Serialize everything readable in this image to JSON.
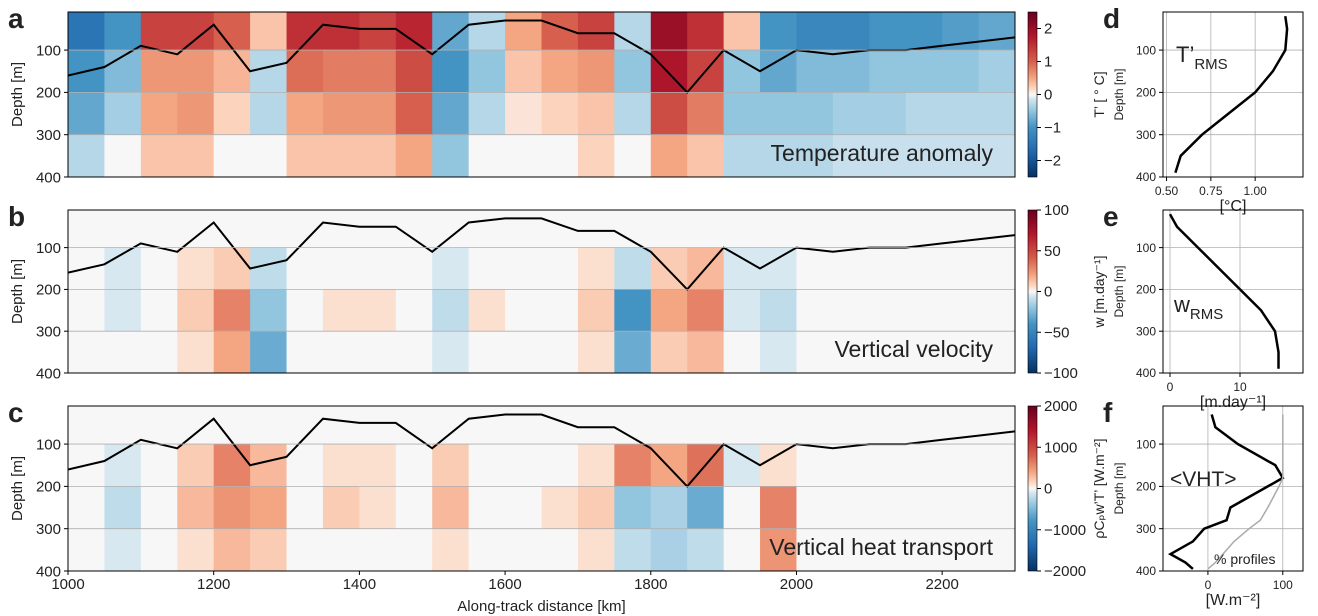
{
  "chart_data": [
    {
      "type": "heatmap",
      "label": "a",
      "annotation": "Temperature anomaly",
      "ylabel": "Depth [m]",
      "colorbar_label": "T’ [ ° C]",
      "xlim": [
        1000,
        2300
      ],
      "ylim": [
        400,
        10
      ],
      "yticks": [
        100,
        200,
        300,
        400
      ],
      "grid": true,
      "zlim": [
        -2.5,
        2.5
      ],
      "zticks": [
        {
          "value": -2,
          "label": "−2"
        },
        {
          "value": -1,
          "label": "−1"
        },
        0,
        1,
        2
      ],
      "x_bins": [
        1000,
        1050,
        1100,
        1150,
        1200,
        1250,
        1300,
        1350,
        1400,
        1450,
        1500,
        1550,
        1600,
        1650,
        1700,
        1750,
        1800,
        1850,
        1900,
        1950,
        2000,
        2050,
        2100,
        2150,
        2200,
        2250,
        2300
      ],
      "y_bins": [
        0,
        100,
        200,
        300,
        400
      ],
      "values": [
        [
          -1.5,
          -1,
          1.3,
          1.3,
          1,
          0.3,
          1.5,
          1.5,
          1.3,
          1.6,
          -0.8,
          -0.3,
          0.5,
          1,
          1.3,
          -0.3,
          2,
          1.5,
          0.3,
          -1,
          -1.2,
          -1.2,
          -1,
          -1,
          -0.9,
          -0.8
        ],
        [
          -1,
          -0.6,
          0.6,
          0.6,
          0.4,
          -0.3,
          0.9,
          0.8,
          0.8,
          1.2,
          -1,
          -0.5,
          0.3,
          0.5,
          0.6,
          -0.5,
          1.8,
          1.3,
          -0.5,
          -0.8,
          -0.6,
          -0.6,
          -0.5,
          -0.5,
          -0.5,
          -0.4
        ],
        [
          -0.8,
          -0.4,
          0.5,
          0.6,
          0.2,
          -0.3,
          0.5,
          0.6,
          0.6,
          1,
          -0.8,
          -0.3,
          0.1,
          0.2,
          0.3,
          -0.3,
          1.2,
          0.8,
          -0.5,
          -0.5,
          -0.5,
          -0.4,
          -0.4,
          -0.3,
          -0.3,
          -0.3
        ],
        [
          -0.3,
          0,
          0.3,
          0.3,
          0,
          0,
          0.3,
          0.3,
          0.3,
          0.5,
          -0.5,
          0,
          0,
          0,
          0.2,
          0,
          0.5,
          0.3,
          -0.3,
          -0.3,
          -0.3,
          -0.2,
          -0.2,
          -0.2,
          -0.2,
          -0.2
        ]
      ],
      "mld": {
        "color": "#000000",
        "x": [
          1000,
          1050,
          1100,
          1150,
          1200,
          1250,
          1300,
          1350,
          1400,
          1450,
          1500,
          1550,
          1600,
          1650,
          1700,
          1750,
          1800,
          1850,
          1900,
          1950,
          2000,
          2050,
          2100,
          2150,
          2200,
          2250,
          2300
        ],
        "depths": [
          160,
          140,
          90,
          110,
          40,
          150,
          130,
          40,
          50,
          50,
          110,
          40,
          30,
          30,
          60,
          60,
          110,
          200,
          100,
          150,
          100,
          110,
          100,
          100,
          90,
          80,
          70
        ]
      }
    },
    {
      "type": "heatmap",
      "label": "b",
      "annotation": "Vertical velocity",
      "ylabel": "Depth [m]",
      "colorbar_label": "w [m.day⁻¹]",
      "xlim": [
        1000,
        2300
      ],
      "ylim": [
        400,
        10
      ],
      "yticks": [
        100,
        200,
        300,
        400
      ],
      "grid": true,
      "zlim": [
        -100,
        100
      ],
      "zticks": [
        {
          "value": -100,
          "label": "−100"
        },
        {
          "value": -50,
          "label": "−50"
        },
        0,
        50,
        100
      ],
      "x_bins": [
        1000,
        1050,
        1100,
        1150,
        1200,
        1250,
        1300,
        1350,
        1400,
        1450,
        1500,
        1550,
        1600,
        1650,
        1700,
        1750,
        1800,
        1850,
        1900,
        1950,
        2000,
        2050,
        2100,
        2150,
        2200,
        2250,
        2300
      ],
      "y_bins": [
        0,
        100,
        200,
        300,
        400
      ],
      "values": [
        [
          0,
          0,
          0,
          0,
          0,
          0,
          0,
          0,
          0,
          0,
          0,
          0,
          0,
          0,
          0,
          0,
          0,
          0,
          0,
          0,
          0,
          0,
          0,
          0,
          0,
          0
        ],
        [
          0,
          -5,
          0,
          5,
          10,
          -10,
          0,
          0,
          0,
          0,
          -5,
          0,
          0,
          0,
          5,
          -10,
          10,
          15,
          -5,
          -5,
          0,
          0,
          0,
          0,
          0,
          0
        ],
        [
          0,
          -5,
          0,
          10,
          30,
          -20,
          0,
          5,
          5,
          0,
          -10,
          5,
          0,
          0,
          10,
          -40,
          20,
          30,
          -5,
          -10,
          0,
          0,
          0,
          0,
          0,
          0
        ],
        [
          0,
          0,
          0,
          5,
          20,
          -30,
          0,
          0,
          0,
          0,
          -5,
          0,
          0,
          0,
          5,
          -30,
          10,
          15,
          0,
          -5,
          0,
          0,
          0,
          0,
          0,
          0
        ]
      ],
      "mld": {
        "color": "#000000",
        "x": [
          1000,
          1050,
          1100,
          1150,
          1200,
          1250,
          1300,
          1350,
          1400,
          1450,
          1500,
          1550,
          1600,
          1650,
          1700,
          1750,
          1800,
          1850,
          1900,
          1950,
          2000,
          2050,
          2100,
          2150,
          2200,
          2250,
          2300
        ],
        "depths": [
          160,
          140,
          90,
          110,
          40,
          150,
          130,
          40,
          50,
          50,
          110,
          40,
          30,
          30,
          60,
          60,
          110,
          200,
          100,
          150,
          100,
          110,
          100,
          100,
          90,
          80,
          70
        ]
      }
    },
    {
      "type": "heatmap",
      "label": "c",
      "annotation": "Vertical heat transport",
      "ylabel": "Depth [m]",
      "colorbar_label": "ρCₚw’T’ [W.m⁻²]",
      "xlabel": "Along-track distance [km]",
      "xlim": [
        1000,
        2300
      ],
      "xticks": [
        1000,
        1200,
        1400,
        1600,
        1800,
        2000,
        2200
      ],
      "ylim": [
        400,
        10
      ],
      "yticks": [
        100,
        200,
        300,
        400
      ],
      "grid": true,
      "zlim": [
        -2000,
        2000
      ],
      "zticks": [
        {
          "value": -2000,
          "label": "−2000"
        },
        {
          "value": -1000,
          "label": "−1000"
        },
        0,
        1000,
        2000
      ],
      "x_bins": [
        1000,
        1050,
        1100,
        1150,
        1200,
        1250,
        1300,
        1350,
        1400,
        1450,
        1500,
        1550,
        1600,
        1650,
        1700,
        1750,
        1800,
        1850,
        1900,
        1950,
        2000,
        2050,
        2100,
        2150,
        2200,
        2250,
        2300
      ],
      "y_bins": [
        0,
        100,
        200,
        300,
        400
      ],
      "values": [
        [
          0,
          0,
          0,
          0,
          0,
          0,
          0,
          0,
          0,
          0,
          0,
          0,
          0,
          0,
          0,
          0,
          0,
          0,
          0,
          0,
          0,
          0,
          0,
          0,
          0,
          0
        ],
        [
          0,
          -100,
          0,
          200,
          600,
          300,
          0,
          100,
          100,
          0,
          200,
          0,
          0,
          0,
          100,
          600,
          400,
          700,
          -100,
          100,
          0,
          0,
          0,
          0,
          0,
          0
        ],
        [
          0,
          -200,
          0,
          300,
          500,
          400,
          0,
          200,
          100,
          0,
          300,
          0,
          0,
          100,
          200,
          -400,
          -300,
          -600,
          0,
          600,
          0,
          0,
          0,
          0,
          0,
          0
        ],
        [
          0,
          -100,
          0,
          100,
          300,
          200,
          0,
          0,
          0,
          0,
          100,
          0,
          0,
          0,
          100,
          -200,
          -300,
          -200,
          0,
          500,
          0,
          0,
          0,
          0,
          0,
          0
        ]
      ],
      "mld": {
        "color": "#000000",
        "x": [
          1000,
          1050,
          1100,
          1150,
          1200,
          1250,
          1300,
          1350,
          1400,
          1450,
          1500,
          1550,
          1600,
          1650,
          1700,
          1750,
          1800,
          1850,
          1900,
          1950,
          2000,
          2050,
          2100,
          2150,
          2200,
          2250,
          2300
        ],
        "depths": [
          160,
          140,
          90,
          110,
          40,
          150,
          130,
          40,
          50,
          50,
          110,
          40,
          30,
          30,
          60,
          60,
          110,
          200,
          100,
          150,
          100,
          110,
          100,
          100,
          90,
          80,
          70
        ]
      }
    },
    {
      "type": "profile",
      "label": "d",
      "annotation": "T’",
      "annotation_sub": "RMS",
      "ylabel": "Depth [m]",
      "xlabel": "[°C]",
      "xlim": [
        0.48,
        1.27
      ],
      "xticks": [
        {
          "value": 0.5,
          "label": "0.50"
        },
        0.75,
        {
          "value": 1,
          "label": "1.00"
        }
      ],
      "ylim": [
        400,
        10
      ],
      "yticks": [
        100,
        200,
        300,
        400
      ],
      "grid": true,
      "depths": [
        20,
        50,
        100,
        150,
        200,
        250,
        300,
        350,
        390
      ],
      "series": [
        {
          "color": "#000000",
          "values": [
            1.17,
            1.18,
            1.17,
            1.1,
            1.0,
            0.85,
            0.7,
            0.58,
            0.55
          ]
        }
      ]
    },
    {
      "type": "profile",
      "label": "e",
      "annotation": "w",
      "annotation_sub": "RMS",
      "ylabel": "Depth [m]",
      "xlabel": "[m.day⁻¹]",
      "xlim": [
        -1,
        19
      ],
      "xticks": [
        0,
        10
      ],
      "ylim": [
        400,
        10
      ],
      "yticks": [
        100,
        200,
        300,
        400
      ],
      "grid": true,
      "depths": [
        20,
        50,
        100,
        150,
        200,
        250,
        300,
        350,
        390
      ],
      "series": [
        {
          "color": "#000000",
          "values": [
            0,
            1,
            4,
            7,
            10,
            13,
            15,
            15.5,
            15.5
          ]
        }
      ]
    },
    {
      "type": "profile",
      "label": "f",
      "ylabel": "Depth [m]",
      "xlabel": "[W.m⁻²]",
      "xlim": [
        -60,
        127
      ],
      "xticks": [
        0,
        100
      ],
      "ylim": [
        400,
        10
      ],
      "yticks": [
        100,
        200,
        300,
        400
      ],
      "grid": true,
      "depths": [
        30,
        60,
        100,
        150,
        180,
        200,
        250,
        280,
        300,
        330,
        360,
        380,
        395
      ],
      "series": [
        {
          "name": "<VHT>",
          "color": "#000000",
          "values": [
            5,
            10,
            40,
            90,
            100,
            80,
            30,
            25,
            -5,
            -20,
            -50,
            -30,
            -20
          ]
        },
        {
          "name": "% profiles",
          "color": "#aaaaaa",
          "values": [
            100,
            100,
            100,
            100,
            100,
            95,
            80,
            70,
            55,
            35,
            20,
            10,
            0
          ]
        }
      ]
    }
  ]
}
